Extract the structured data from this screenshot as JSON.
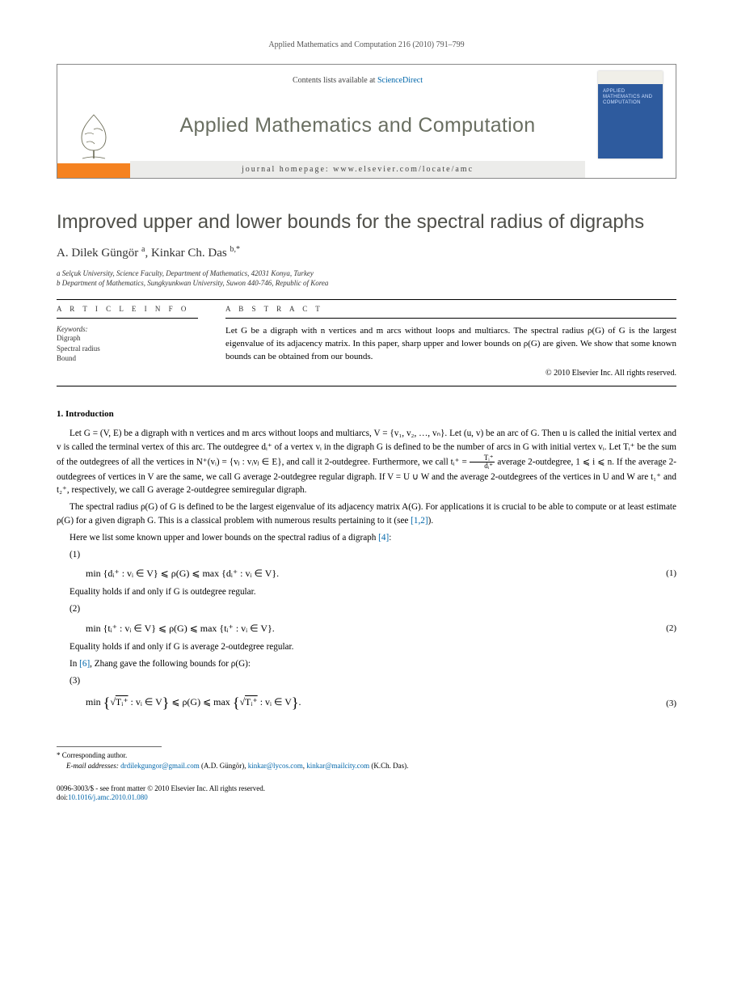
{
  "header": {
    "running_head": "Applied Mathematics and Computation 216 (2010) 791–799"
  },
  "masthead": {
    "contents_prefix": "Contents lists available at ",
    "contents_link": "ScienceDirect",
    "publisher_label": "ELSEVIER",
    "journal_name": "Applied Mathematics and Computation",
    "homepage_label": "journal homepage: www.elsevier.com/locate/amc",
    "cover_text": "APPLIED MATHEMATICS AND COMPUTATION"
  },
  "article": {
    "title": "Improved upper and lower bounds for the spectral radius of digraphs",
    "authors_html": "A. Dilek Güngör <sup>a</sup>, Kinkar Ch. Das <sup>b,*</sup>",
    "affiliations": [
      "a Selçuk University, Science Faculty, Department of Mathematics, 42031 Konya, Turkey",
      "b Department of Mathematics, Sungkyunkwan University, Suwon 440-746, Republic of Korea"
    ]
  },
  "info": {
    "head": "A R T I C L E   I N F O",
    "keywords_label": "Keywords:",
    "keywords": [
      "Digraph",
      "Spectral radius",
      "Bound"
    ]
  },
  "abstract": {
    "head": "A B S T R A C T",
    "body": "Let G be a digraph with n vertices and m arcs without loops and multiarcs. The spectral radius ρ(G) of G is the largest eigenvalue of its adjacency matrix. In this paper, sharp upper and lower bounds on ρ(G) are given. We show that some known bounds can be obtained from our bounds.",
    "copyright": "© 2010 Elsevier Inc. All rights reserved."
  },
  "section1": {
    "heading": "1. Introduction",
    "p1a": "Let G = (V, E) be a digraph with n vertices and m arcs without loops and multiarcs, V = {v₁, v₂, …, vₙ}. Let (u, v) be an arc of G. Then u is called the initial vertex and v is called the terminal vertex of this arc. The outdegree dᵢ⁺ of a vertex vᵢ in the digraph G is defined to be the number of arcs in G with initial vertex vᵢ. Let Tᵢ⁺ be the sum of the outdegrees of all the vertices in N⁺(vᵢ) = {vⱼ : vᵢvⱼ ∈ E}, and call it 2-outdegree. Furthermore, we call tᵢ⁺ = ",
    "p1b": " average 2-outdegree, 1 ⩽ i ⩽ n. If the average 2-outdegrees of vertices in V are the same, we call G average 2-outdegree regular digraph. If V = U ∪ W and the average 2-outdegrees of the vertices in U and W are t₁⁺ and t₂⁺, respectively, we call G average 2-outdegree semiregular digraph.",
    "p2a": "The spectral radius ρ(G) of G is defined to be the largest eigenvalue of its adjacency matrix A(G). For applications it is crucial to be able to compute or at least estimate ρ(G) for a given digraph G. This is a classical problem with numerous results pertaining to it (see ",
    "ref12": "[1,2]",
    "p2b": ").",
    "p3a": "Here we list some known upper and lower bounds on the spectral radius of a digraph ",
    "ref4": "[4]",
    "p3b": ":",
    "item1": "(1)",
    "eq1": "min {dᵢ⁺ : vᵢ ∈ V} ⩽ ρ(G) ⩽ max {dᵢ⁺ : vᵢ ∈ V}.",
    "eq1num": "(1)",
    "eq1note": "Equality holds if and only if G is outdegree regular.",
    "item2": "(2)",
    "eq2": "min {tᵢ⁺ : vᵢ ∈ V} ⩽ ρ(G) ⩽ max {tᵢ⁺ : vᵢ ∈ V}.",
    "eq2num": "(2)",
    "eq2note": "Equality holds if and only if G is average 2-outdegree regular.",
    "p4a": "In ",
    "ref6": "[6]",
    "p4b": ", Zhang gave the following bounds for ρ(G):",
    "item3": "(3)",
    "eq3_pre": "min",
    "eq3_math": "{√Tᵢ⁺ : vᵢ ∈ V} ⩽ ρ(G) ⩽ max {√Tᵢ⁺ : vᵢ ∈ V}.",
    "eq3num": "(3)"
  },
  "footnotes": {
    "corr": "* Corresponding author.",
    "email_label": "E-mail addresses:",
    "email1": "drdilekgungor@gmail.com",
    "email1_who": " (A.D. Güngör), ",
    "email2": "kinkar@lycos.com",
    "email_sep": ", ",
    "email3": "kinkar@mailcity.com",
    "email3_who": " (K.Ch. Das)."
  },
  "footer": {
    "issn": "0096-3003/$ - see front matter © 2010 Elsevier Inc. All rights reserved.",
    "doi_label": "doi:",
    "doi": "10.1016/j.amc.2010.01.080"
  },
  "style": {
    "link_color": "#0066aa",
    "accent_orange": "#f58220",
    "cover_blue": "#2e5b9e",
    "journal_name_color": "#6a6f62"
  }
}
